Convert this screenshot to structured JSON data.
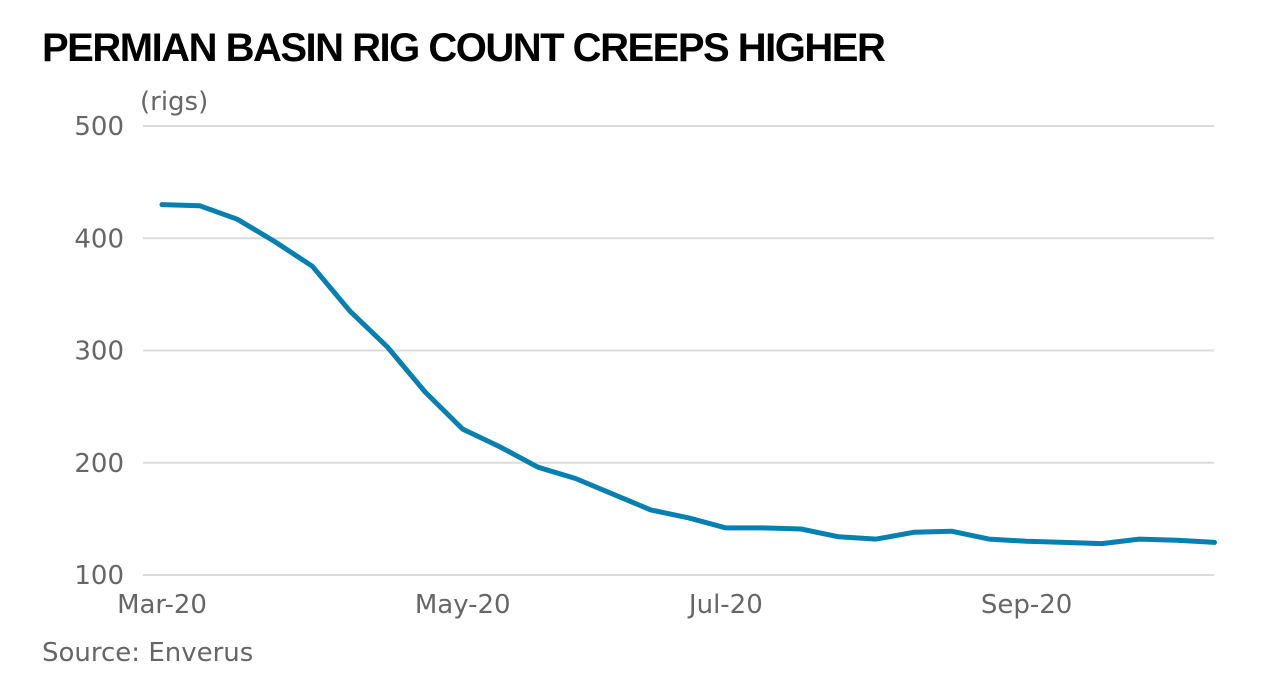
{
  "title": "PERMIAN BASIN RIG COUNT CREEPS HIGHER",
  "source": "Source: Enverus",
  "chart_data": {
    "type": "line",
    "title": "PERMIAN BASIN RIG COUNT CREEPS HIGHER",
    "ylabel": "(rigs)",
    "xlabel": "",
    "ylim": [
      100,
      500
    ],
    "yticks": [
      100,
      200,
      300,
      400,
      500
    ],
    "xticks": [
      {
        "label": "Mar-20",
        "date": "2020-03-06"
      },
      {
        "label": "May-20",
        "date": "2020-05-01"
      },
      {
        "label": "Jul-20",
        "date": "2020-06-19"
      },
      {
        "label": "Sep-20",
        "date": "2020-08-14"
      }
    ],
    "grid": true,
    "line_color": "#0580b0",
    "series": [
      {
        "x": [
          "2020-03-06",
          "2020-03-13",
          "2020-03-20",
          "2020-03-27",
          "2020-04-03",
          "2020-04-10",
          "2020-04-17",
          "2020-04-24",
          "2020-05-01",
          "2020-05-08",
          "2020-05-15",
          "2020-05-22",
          "2020-05-29",
          "2020-06-05",
          "2020-06-12",
          "2020-06-19",
          "2020-06-26",
          "2020-07-03",
          "2020-07-10",
          "2020-07-17",
          "2020-07-24",
          "2020-07-31",
          "2020-08-07",
          "2020-08-14",
          "2020-08-21",
          "2020-08-28",
          "2020-09-04",
          "2020-09-11",
          "2020-09-18"
        ],
        "values": [
          430,
          429,
          417,
          397,
          375,
          335,
          303,
          263,
          230,
          214,
          196,
          186,
          172,
          158,
          151,
          142,
          142,
          141,
          134,
          132,
          138,
          139,
          132,
          130,
          129,
          128,
          132,
          131,
          129
        ]
      }
    ]
  }
}
